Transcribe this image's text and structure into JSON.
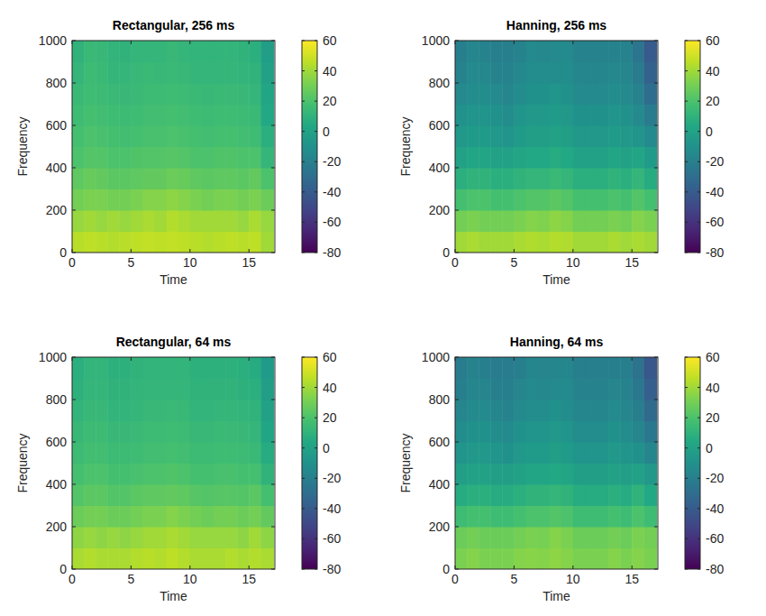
{
  "chart_data": [
    {
      "type": "heatmap",
      "title": "Rectangular, 256 ms",
      "x_label": "Time",
      "y_label": "Frequency",
      "xlim": [
        0,
        17.2
      ],
      "ylim": [
        0,
        1000
      ],
      "xticks": [
        0,
        5,
        10,
        15
      ],
      "yticks": [
        0,
        200,
        400,
        600,
        800,
        1000
      ],
      "x": [
        0,
        1,
        2,
        3,
        4,
        5,
        6,
        7,
        8,
        9,
        10,
        11,
        12,
        13,
        14,
        15,
        16,
        17.1
      ],
      "y": [
        0,
        100,
        200,
        300,
        400,
        500,
        600,
        700,
        800,
        900,
        1000
      ],
      "values": [
        [
          45,
          46,
          45,
          44,
          45,
          46,
          47,
          46,
          47,
          46,
          45,
          44,
          45,
          46,
          45,
          46,
          40
        ],
        [
          38,
          40,
          38,
          40,
          38,
          40,
          42,
          40,
          44,
          42,
          40,
          40,
          40,
          40,
          38,
          42,
          38
        ],
        [
          30,
          32,
          32,
          30,
          30,
          32,
          34,
          34,
          36,
          34,
          32,
          30,
          32,
          32,
          30,
          32,
          28
        ],
        [
          25,
          27,
          26,
          24,
          24,
          25,
          26,
          26,
          28,
          27,
          25,
          24,
          25,
          25,
          24,
          26,
          20
        ],
        [
          20,
          22,
          22,
          20,
          20,
          21,
          22,
          22,
          23,
          22,
          20,
          20,
          21,
          21,
          20,
          20,
          12
        ],
        [
          18,
          20,
          19,
          18,
          17,
          18,
          19,
          19,
          20,
          19,
          18,
          17,
          18,
          18,
          17,
          16,
          8
        ],
        [
          16,
          18,
          17,
          16,
          15,
          16,
          17,
          17,
          18,
          17,
          16,
          15,
          16,
          16,
          15,
          14,
          4
        ],
        [
          14,
          16,
          15,
          14,
          13,
          14,
          15,
          15,
          16,
          15,
          14,
          13,
          14,
          14,
          13,
          12,
          2
        ],
        [
          12,
          15,
          14,
          12,
          12,
          13,
          14,
          13,
          14,
          13,
          12,
          12,
          12,
          12,
          11,
          10,
          0
        ],
        [
          10,
          14,
          13,
          11,
          10,
          12,
          12,
          12,
          13,
          12,
          11,
          11,
          11,
          11,
          10,
          8,
          -2
        ]
      ],
      "zlim": [
        -80,
        60
      ],
      "zticks": [
        -80,
        -60,
        -40,
        -20,
        0,
        20,
        40,
        60
      ]
    },
    {
      "type": "heatmap",
      "title": "Hanning, 256 ms",
      "x_label": "Time",
      "y_label": "Frequency",
      "xlim": [
        0,
        17.2
      ],
      "ylim": [
        0,
        1000
      ],
      "xticks": [
        0,
        5,
        10,
        15
      ],
      "yticks": [
        0,
        200,
        400,
        600,
        800,
        1000
      ],
      "x": [
        0,
        1,
        2,
        3,
        4,
        5,
        6,
        7,
        8,
        9,
        10,
        11,
        12,
        13,
        14,
        15,
        16,
        17.1
      ],
      "y": [
        0,
        100,
        200,
        300,
        400,
        500,
        600,
        700,
        800,
        900,
        1000
      ],
      "values": [
        [
          40,
          42,
          40,
          40,
          40,
          42,
          43,
          42,
          44,
          43,
          40,
          40,
          40,
          42,
          40,
          42,
          40
        ],
        [
          30,
          32,
          30,
          30,
          30,
          32,
          34,
          33,
          36,
          34,
          30,
          30,
          30,
          32,
          30,
          34,
          32
        ],
        [
          18,
          20,
          20,
          18,
          18,
          20,
          22,
          22,
          24,
          22,
          18,
          18,
          18,
          20,
          18,
          22,
          18
        ],
        [
          8,
          10,
          10,
          8,
          8,
          10,
          12,
          12,
          14,
          12,
          8,
          8,
          8,
          10,
          8,
          12,
          6
        ],
        [
          0,
          2,
          2,
          0,
          0,
          2,
          4,
          4,
          6,
          4,
          0,
          0,
          0,
          2,
          0,
          2,
          -4
        ],
        [
          -6,
          -4,
          -4,
          -6,
          -8,
          -4,
          -2,
          -2,
          0,
          -2,
          -6,
          -6,
          -6,
          -4,
          -6,
          -8,
          -14
        ],
        [
          -10,
          -8,
          -8,
          -10,
          -12,
          -8,
          -6,
          -6,
          -4,
          -6,
          -10,
          -10,
          -10,
          -8,
          -10,
          -14,
          -22
        ],
        [
          -14,
          -12,
          -12,
          -14,
          -16,
          -12,
          -10,
          -10,
          -8,
          -10,
          -14,
          -14,
          -14,
          -12,
          -14,
          -18,
          -30
        ],
        [
          -18,
          -14,
          -15,
          -18,
          -18,
          -15,
          -12,
          -13,
          -12,
          -12,
          -16,
          -16,
          -16,
          -15,
          -16,
          -22,
          -36
        ],
        [
          -20,
          -16,
          -18,
          -20,
          -20,
          -18,
          -14,
          -15,
          -14,
          -14,
          -18,
          -18,
          -18,
          -18,
          -18,
          -25,
          -40
        ]
      ],
      "zlim": [
        -80,
        60
      ],
      "zticks": [
        -80,
        -60,
        -40,
        -20,
        0,
        20,
        40,
        60
      ]
    },
    {
      "type": "heatmap",
      "title": "Rectangular, 64 ms",
      "x_label": "Time",
      "y_label": "Frequency",
      "xlim": [
        0,
        17.2
      ],
      "ylim": [
        0,
        1000
      ],
      "xticks": [
        0,
        5,
        10,
        15
      ],
      "yticks": [
        0,
        200,
        400,
        600,
        800,
        1000
      ],
      "x": [
        0,
        1,
        2,
        3,
        4,
        5,
        6,
        7,
        8,
        9,
        10,
        11,
        12,
        13,
        14,
        15,
        16,
        17.1
      ],
      "y": [
        0,
        100,
        200,
        300,
        400,
        500,
        600,
        700,
        800,
        900,
        1000
      ],
      "values": [
        [
          42,
          44,
          42,
          42,
          42,
          44,
          45,
          44,
          46,
          44,
          42,
          42,
          42,
          44,
          42,
          44,
          42
        ],
        [
          36,
          38,
          36,
          38,
          36,
          38,
          40,
          40,
          42,
          40,
          38,
          38,
          38,
          38,
          36,
          40,
          36
        ],
        [
          28,
          30,
          30,
          28,
          28,
          30,
          32,
          32,
          34,
          32,
          30,
          28,
          30,
          30,
          28,
          30,
          26
        ],
        [
          22,
          24,
          24,
          22,
          22,
          24,
          25,
          25,
          26,
          25,
          23,
          22,
          23,
          23,
          22,
          24,
          18
        ],
        [
          18,
          20,
          20,
          18,
          18,
          19,
          20,
          20,
          21,
          20,
          18,
          18,
          19,
          19,
          18,
          18,
          10
        ],
        [
          15,
          17,
          17,
          15,
          15,
          16,
          17,
          17,
          18,
          17,
          15,
          15,
          16,
          16,
          15,
          14,
          6
        ],
        [
          13,
          15,
          15,
          13,
          13,
          14,
          15,
          15,
          16,
          15,
          13,
          13,
          14,
          14,
          13,
          12,
          2
        ],
        [
          11,
          13,
          13,
          11,
          11,
          12,
          13,
          13,
          14,
          13,
          11,
          11,
          12,
          12,
          11,
          10,
          0
        ],
        [
          9,
          12,
          12,
          10,
          10,
          11,
          12,
          12,
          12,
          12,
          10,
          10,
          10,
          10,
          9,
          8,
          -2
        ],
        [
          8,
          11,
          11,
          9,
          9,
          10,
          11,
          11,
          11,
          11,
          9,
          9,
          9,
          9,
          8,
          6,
          -4
        ]
      ],
      "zlim": [
        -80,
        60
      ],
      "zticks": [
        -80,
        -60,
        -40,
        -20,
        0,
        20,
        40,
        60
      ]
    },
    {
      "type": "heatmap",
      "title": "Hanning, 64 ms",
      "x_label": "Time",
      "y_label": "Frequency",
      "xlim": [
        0,
        17.2
      ],
      "ylim": [
        0,
        1000
      ],
      "xticks": [
        0,
        5,
        10,
        15
      ],
      "yticks": [
        0,
        200,
        400,
        600,
        800,
        1000
      ],
      "x": [
        0,
        1,
        2,
        3,
        4,
        5,
        6,
        7,
        8,
        9,
        10,
        11,
        12,
        13,
        14,
        15,
        16,
        17.1
      ],
      "y": [
        0,
        100,
        200,
        300,
        400,
        500,
        600,
        700,
        800,
        900,
        1000
      ],
      "values": [
        [
          32,
          34,
          32,
          32,
          32,
          34,
          35,
          34,
          36,
          34,
          32,
          32,
          32,
          34,
          32,
          34,
          32
        ],
        [
          28,
          30,
          28,
          28,
          28,
          30,
          32,
          31,
          34,
          32,
          28,
          28,
          28,
          30,
          28,
          32,
          30
        ],
        [
          16,
          18,
          18,
          16,
          16,
          18,
          20,
          20,
          22,
          20,
          16,
          16,
          16,
          18,
          16,
          20,
          16
        ],
        [
          6,
          8,
          8,
          6,
          6,
          8,
          10,
          10,
          12,
          10,
          6,
          6,
          6,
          8,
          6,
          10,
          4
        ],
        [
          -2,
          0,
          0,
          -2,
          -2,
          0,
          2,
          2,
          4,
          2,
          -2,
          -2,
          -2,
          0,
          -2,
          0,
          -6
        ],
        [
          -8,
          -6,
          -6,
          -8,
          -10,
          -6,
          -4,
          -4,
          -2,
          -4,
          -8,
          -8,
          -8,
          -6,
          -8,
          -10,
          -16
        ],
        [
          -12,
          -10,
          -10,
          -12,
          -14,
          -10,
          -8,
          -8,
          -6,
          -8,
          -12,
          -12,
          -12,
          -10,
          -12,
          -16,
          -24
        ],
        [
          -16,
          -14,
          -14,
          -16,
          -18,
          -14,
          -12,
          -12,
          -10,
          -12,
          -16,
          -16,
          -16,
          -14,
          -16,
          -20,
          -32
        ],
        [
          -20,
          -16,
          -17,
          -20,
          -20,
          -17,
          -14,
          -15,
          -14,
          -14,
          -18,
          -18,
          -18,
          -17,
          -18,
          -24,
          -38
        ],
        [
          -22,
          -18,
          -20,
          -22,
          -22,
          -20,
          -16,
          -17,
          -16,
          -16,
          -20,
          -20,
          -20,
          -20,
          -20,
          -27,
          -42
        ]
      ],
      "zlim": [
        -80,
        60
      ],
      "zticks": [
        -80,
        -60,
        -40,
        -20,
        0,
        20,
        40,
        60
      ]
    }
  ]
}
